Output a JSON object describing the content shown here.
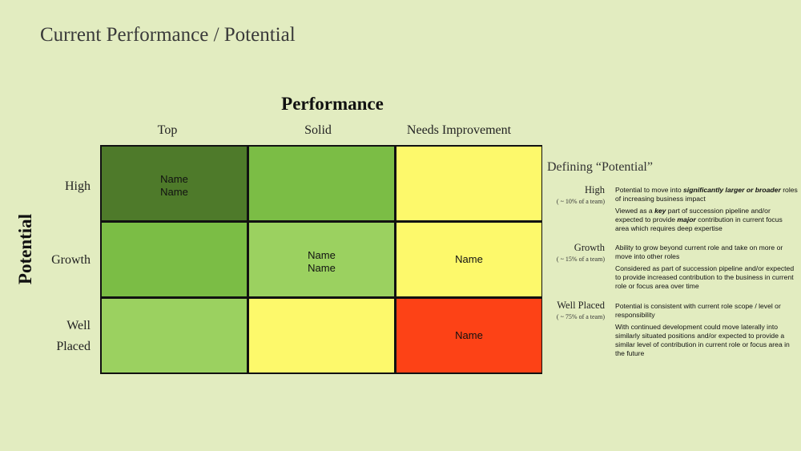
{
  "title": "Current Performance / Potential",
  "performance_axis": {
    "title": "Performance",
    "columns": [
      "Top",
      "Solid",
      "Needs Improvement"
    ]
  },
  "potential_axis": {
    "title": "Potential",
    "rows": [
      "High",
      "Growth",
      "Well",
      "Placed"
    ]
  },
  "colors": {
    "background": "#e2ecc0",
    "dark_green": "#4e7a2a",
    "green": "#7bbd45",
    "light_green": "#9bd160",
    "yellow": "#fdf96b",
    "red": "#fd4216"
  },
  "grid": {
    "high_top": [
      "Name",
      "Name"
    ],
    "growth_solid": [
      "Name",
      "Name"
    ],
    "growth_needs": "Name",
    "well_needs": "Name"
  },
  "definitions": {
    "title": "Defining “Potential”",
    "high": {
      "level": "High",
      "share": "( ~ 10%  of a team)",
      "p1_pre": "Potential to move into ",
      "p1_emph": "significantly larger or broader",
      "p1_post": " roles of increasing business impact",
      "p2_pre": "Viewed as a ",
      "p2_emph1": "key",
      "p2_mid": " part of succession pipeline and/or expected to provide ",
      "p2_emph2": "major",
      "p2_post": " contribution in current focus area which requires deep expertise"
    },
    "growth": {
      "level": "Growth",
      "share": "( ~ 15%  of a team)",
      "p1": "Ability to grow beyond current role and take on more or move into other roles",
      "p2": "Considered as part of succession pipeline and/or expected to provide increased contribution to the business in current role or focus area over time"
    },
    "well_placed": {
      "level": "Well Placed",
      "share": "( ~ 75%  of a team)",
      "p1": "Potential is consistent with current role scope / level or responsibility",
      "p2": "With continued development could move laterally into similarly situated positions  and/or expected to provide a similar level of contribution in current role or focus area in the future"
    }
  }
}
